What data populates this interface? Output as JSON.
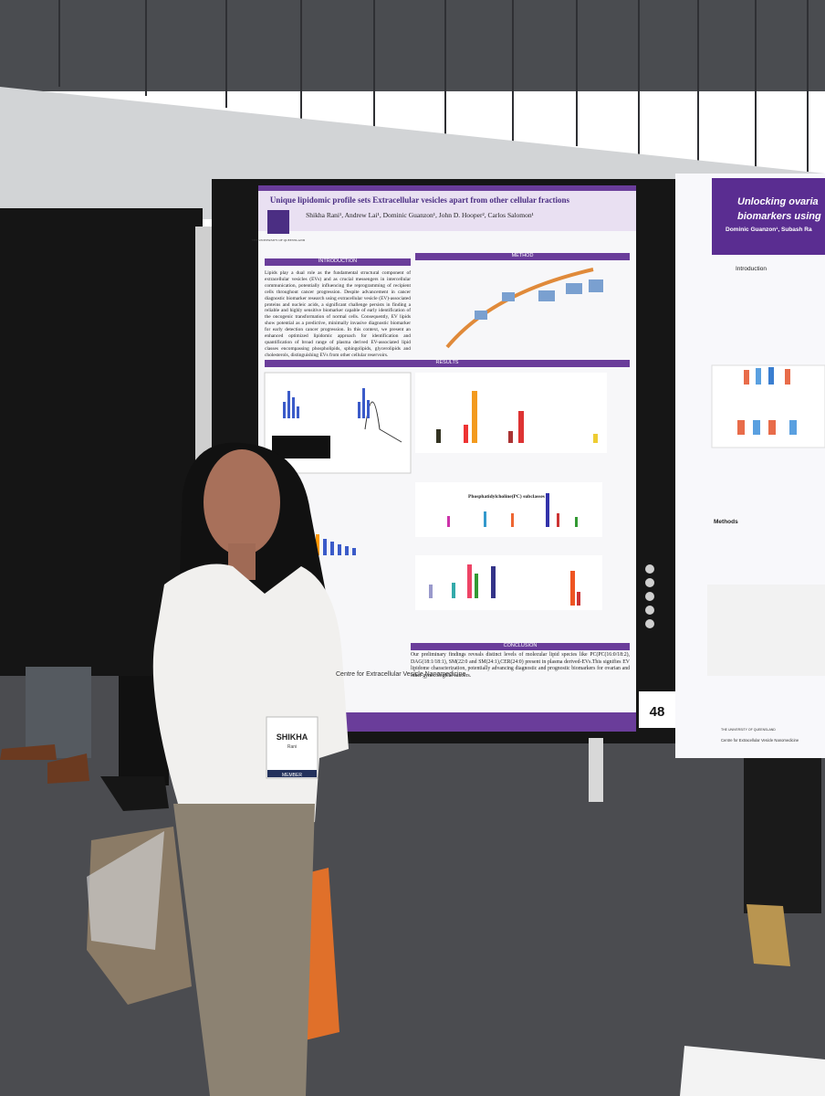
{
  "poster_left": {
    "title": "Unique lipidomic profile sets Extracellular vesicles apart from other cellular fractions",
    "authors": "Shikha Rani¹, Andrew Lai¹, Dominic Guanzon¹, John D. Hooper², Carlos Salomon¹",
    "logo_text": "THE UNIVERSITY OF QUEENSLAND",
    "section_introduction": "INTRODUCTION",
    "section_method": "METHOD",
    "section_results": "RESULTS",
    "section_conclusion": "CONCLUSION",
    "introduction_text": "Lipids play a dual role as the fundamental structural component of extracellular vesicles (EVs) and as crucial messengers in intercellular communication, potentially influencing the reprogramming of recipient cells throughout cancer progression. Despite advancement in cancer diagnostic biomarker research using extracellular vesicle (EV)-associated proteins and nucleic acids, a significant challenge persists in finding a reliable and highly sensitive biomarker capable of early identification of the oncogenic transformation of normal cells. Consequently, EV lipids show potential as a predictive, minimally invasive diagnostic biomarker for early detection cancer progression. In this context, we present an enhanced optimized lipidomic approach for identification and quantification of broad range of plasma derived EV-associated lipid classes encompassing phospholipids, sphingolipids, glycerolipids and cholesterols, distinguishing EVs from other cellular reservoirs.",
    "chart_label": "Phosphatidylcholine(PC) subclasses",
    "conclusion_text": "Our preliminary findings reveals distinct levels of molecular lipid species like PC(PC(16:0/18:2), DAG(18:1/18:1), SM(22:0 and SM(24:1),CER(24:0) present in plasma derived-EVs.This signifies EV lipidome characterization, potentially advancing diagnostic and prognostic biomarkers for ovarian and other gynecological cancers.",
    "footer": "Centre for Extracellular Vesicle Nanomedicine"
  },
  "poster_right": {
    "title_line_1": "Unlocking ovaria",
    "title_line_2": "biomarkers using",
    "authors": "Dominic Guanzon¹, Subash Ra",
    "section_introduction": "Introduction",
    "section_methods": "Methods",
    "footer_university": "THE UNIVERSITY OF QUEENSLAND",
    "footer_centre": "Centre for Extracellular Vesicle Nanomedicine"
  },
  "board_number": "48",
  "badge": {
    "name": "SHIKHA",
    "surname": "Rani",
    "role": "MEMBER"
  }
}
